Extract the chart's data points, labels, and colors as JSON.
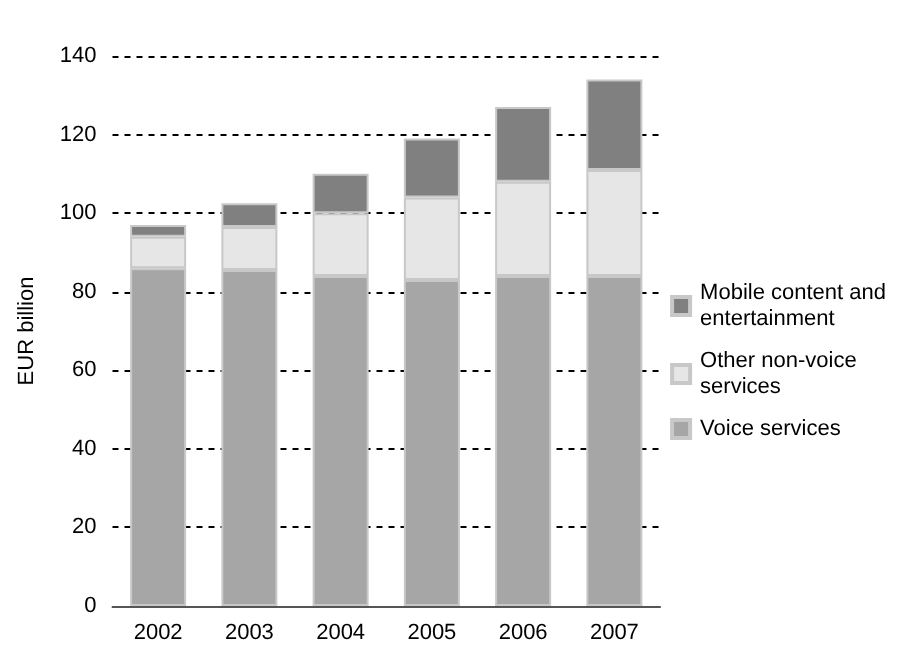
{
  "chart_data": {
    "type": "bar",
    "stacked": true,
    "ylabel": "EUR billion",
    "categories": [
      "2002",
      "2003",
      "2004",
      "2005",
      "2006",
      "2007"
    ],
    "series": [
      {
        "name": "Voice services",
        "color": "#a6a6a6",
        "values": [
          86,
          85.5,
          84,
          83,
          84,
          84
        ]
      },
      {
        "name": "Other non-voice services",
        "color": "#e6e6e6",
        "values": [
          8,
          11,
          16,
          21,
          24,
          27
        ]
      },
      {
        "name": "Mobile content and entertainment",
        "color": "#808080",
        "values": [
          3,
          6,
          10,
          15,
          19,
          23
        ]
      }
    ],
    "ylim": [
      0,
      140
    ],
    "yticks": [
      0,
      20,
      40,
      60,
      80,
      100,
      120,
      140
    ],
    "grid": "y",
    "legend": "right"
  }
}
